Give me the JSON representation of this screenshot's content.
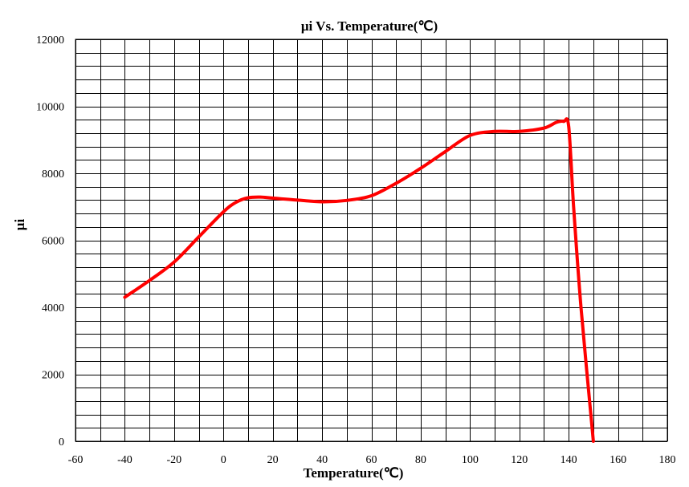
{
  "chart_data": {
    "type": "line",
    "title": "μi Vs. Temperature(℃)",
    "xlabel": "Temperature(℃)",
    "ylabel": "μi",
    "xlim": [
      -60,
      180
    ],
    "ylim": [
      0,
      12000
    ],
    "x_ticks": [
      -60,
      -40,
      -20,
      0,
      20,
      40,
      60,
      80,
      100,
      120,
      140,
      160,
      180
    ],
    "y_ticks": [
      0,
      2000,
      4000,
      6000,
      8000,
      10000,
      12000
    ],
    "x_minor_step": 10,
    "y_minor_step": 400,
    "grid": true,
    "legend": "none",
    "series": [
      {
        "color": "#ff0000",
        "x": [
          -40,
          -30,
          -20,
          -10,
          0,
          5,
          10,
          15,
          20,
          30,
          40,
          50,
          60,
          70,
          80,
          90,
          100,
          110,
          120,
          130,
          135,
          138,
          140,
          142,
          145,
          150
        ],
        "values": [
          4300,
          4800,
          5350,
          6100,
          6850,
          7130,
          7270,
          7290,
          7260,
          7200,
          7150,
          7190,
          7330,
          7700,
          8150,
          8650,
          9130,
          9250,
          9250,
          9350,
          9520,
          9550,
          9400,
          7000,
          4000,
          0
        ]
      }
    ]
  }
}
